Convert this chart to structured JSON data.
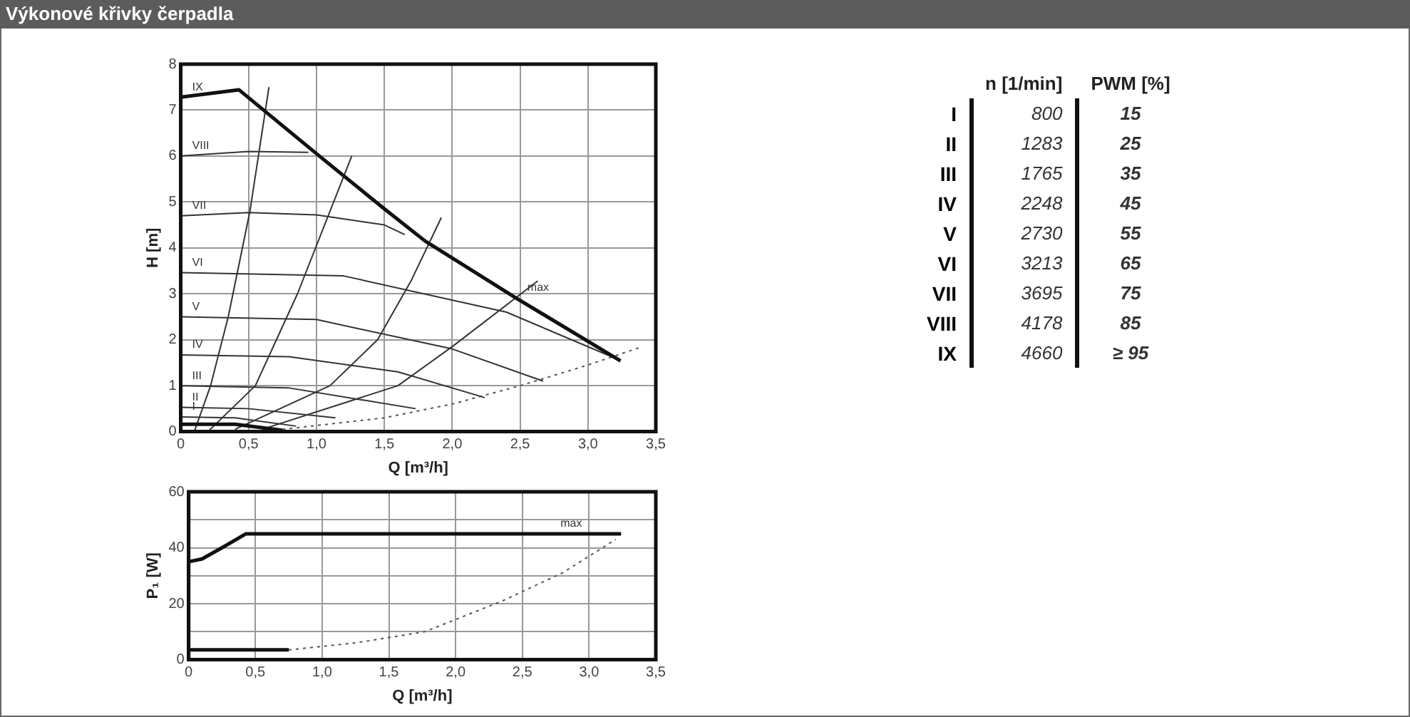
{
  "chart_data": [
    {
      "type": "line",
      "title": "Výkonové křivky čerpadla",
      "xlabel": "Q [m³/h]",
      "ylabel": "H [m]",
      "xlim": [
        0,
        3.5
      ],
      "ylim": [
        0,
        8
      ],
      "xticks": [
        0,
        {
          "value": 0.5,
          "label": "0,5"
        },
        {
          "value": 1,
          "label": "1,0"
        },
        {
          "value": 1.5,
          "label": "1,5"
        },
        {
          "value": 2,
          "label": "2,0"
        },
        {
          "value": 2.5,
          "label": "2,5"
        },
        {
          "value": 3,
          "label": "3,0"
        },
        {
          "value": 3.5,
          "label": "3,5"
        }
      ],
      "yticks": [
        0,
        1,
        2,
        3,
        4,
        5,
        6,
        7,
        8
      ],
      "grid": true,
      "legend": false,
      "marker": "none",
      "series": [
        {
          "color": "#111111",
          "x": [
            0,
            0.43,
            1.0,
            1.5,
            1.8,
            2.47,
            3.24
          ],
          "values": [
            7.28,
            7.44,
            6.05,
            4.85,
            4.15,
            2.91,
            1.54
          ]
        },
        {
          "color": "#333333",
          "x": [
            0,
            0.5,
            0.94
          ],
          "values": [
            6.0,
            6.1,
            6.08
          ]
        },
        {
          "color": "#333333",
          "x": [
            0,
            0.5,
            1.0,
            1.5,
            1.65
          ],
          "values": [
            4.7,
            4.77,
            4.72,
            4.5,
            4.29
          ]
        },
        {
          "color": "#333333",
          "x": [
            0,
            1.2,
            2.4,
            3.2
          ],
          "values": [
            3.46,
            3.39,
            2.6,
            1.6
          ]
        },
        {
          "color": "#333333",
          "x": [
            0,
            1.0,
            2.0,
            2.67
          ],
          "values": [
            2.5,
            2.44,
            1.8,
            1.1
          ]
        },
        {
          "color": "#333333",
          "x": [
            0,
            0.8,
            1.6,
            2.24
          ],
          "values": [
            1.67,
            1.63,
            1.3,
            0.74
          ]
        },
        {
          "color": "#333333",
          "x": [
            0,
            0.8,
            1.73
          ],
          "values": [
            1.0,
            0.95,
            0.5
          ]
        },
        {
          "color": "#333333",
          "x": [
            0,
            0.5,
            1.14
          ],
          "values": [
            0.53,
            0.5,
            0.3
          ]
        },
        {
          "color": "#333333",
          "x": [
            0,
            0.4,
            0.85
          ],
          "values": [
            0.32,
            0.3,
            0.12
          ]
        },
        {
          "color": "#111111",
          "x": [
            0,
            0.4,
            0.75
          ],
          "values": [
            0.16,
            0.16,
            0.03
          ]
        },
        {
          "color": "#333333",
          "x": [
            0.1,
            0.22,
            0.35,
            0.51,
            0.65
          ],
          "values": [
            0,
            1.0,
            2.5,
            4.8,
            7.5
          ]
        },
        {
          "color": "#333333",
          "x": [
            0.2,
            0.55,
            0.86,
            1.26
          ],
          "values": [
            0,
            1.0,
            3.0,
            6.0
          ]
        },
        {
          "color": "#333333",
          "x": [
            0.4,
            1.1,
            1.45,
            1.7,
            1.92
          ],
          "values": [
            0.05,
            1.0,
            2.0,
            3.3,
            4.66
          ]
        },
        {
          "color": "#333333",
          "x": [
            0.6,
            1.6,
            2.0,
            2.63
          ],
          "values": [
            0.05,
            1.0,
            1.85,
            3.28
          ]
        },
        {
          "color": "#555555",
          "x": [
            0.75,
            1.5,
            2.0,
            2.5,
            3.0,
            3.4
          ],
          "values": [
            0.05,
            0.3,
            0.6,
            1.0,
            1.45,
            1.85
          ],
          "line_style": "dotted"
        }
      ],
      "annotations": [
        {
          "text": "IX",
          "x": 0,
          "y": 7.28
        },
        {
          "text": "VIII",
          "x": 0,
          "y": 6.0
        },
        {
          "text": "VII",
          "x": 0,
          "y": 4.7
        },
        {
          "text": "VI",
          "x": 0,
          "y": 3.46
        },
        {
          "text": "V",
          "x": 0,
          "y": 2.5
        },
        {
          "text": "IV",
          "x": 0,
          "y": 1.67
        },
        {
          "text": "III",
          "x": 0,
          "y": 1.0
        },
        {
          "text": "II",
          "x": 0,
          "y": 0.53
        },
        {
          "text": "I",
          "x": 0,
          "y": 0.32
        },
        {
          "text": "max",
          "x": 2.47,
          "y": 2.91
        }
      ]
    },
    {
      "type": "line",
      "xlabel": "Q [m³/h]",
      "ylabel": "P₁ [W]",
      "xlim": [
        0,
        3.5
      ],
      "ylim": [
        0,
        60
      ],
      "xticks": [
        0,
        {
          "value": 0.5,
          "label": "0,5"
        },
        {
          "value": 1,
          "label": "1,0"
        },
        {
          "value": 1.5,
          "label": "1,5"
        },
        {
          "value": 2,
          "label": "2,0"
        },
        {
          "value": 2.5,
          "label": "2,5"
        },
        {
          "value": 3,
          "label": "3,0"
        },
        {
          "value": 3.5,
          "label": "3,5"
        }
      ],
      "yticks": [
        0,
        {
          "value": 10,
          "label": null
        },
        20,
        {
          "value": 30,
          "label": null
        },
        40,
        {
          "value": 50,
          "label": null
        },
        60
      ],
      "grid": true,
      "legend": false,
      "marker": "none",
      "series": [
        {
          "color": "#111111",
          "x": [
            0,
            0.1,
            0.25,
            0.43,
            3.24
          ],
          "values": [
            35,
            36,
            40,
            45,
            45
          ]
        },
        {
          "color": "#111111",
          "x": [
            0,
            0.75
          ],
          "values": [
            3.5,
            3.5
          ]
        },
        {
          "color": "#555555",
          "x": [
            0.75,
            1.25,
            1.77,
            2.35,
            2.8,
            3.2
          ],
          "values": [
            3.5,
            6,
            10,
            21,
            31,
            43
          ],
          "line_style": "dotted"
        }
      ],
      "annotations": [
        {
          "text": "max",
          "x": 2.7,
          "y": 45
        }
      ]
    },
    {
      "type": "other",
      "data_labels": true,
      "categories": [
        "I",
        "II",
        "III",
        "IV",
        "V",
        "VI",
        "VII",
        "VIII",
        "IX"
      ],
      "series": [
        {
          "name": "n [1/min]",
          "values": [
            800,
            1283,
            1765,
            2248,
            2730,
            3213,
            3695,
            4178,
            4660
          ]
        },
        {
          "name": "PWM [%]",
          "values": [
            15,
            25,
            35,
            45,
            55,
            65,
            75,
            85,
            95
          ],
          "value_labels": [
            "15",
            "25",
            "35",
            "45",
            "55",
            "65",
            "75",
            "85",
            "≥ 95"
          ]
        }
      ]
    }
  ]
}
